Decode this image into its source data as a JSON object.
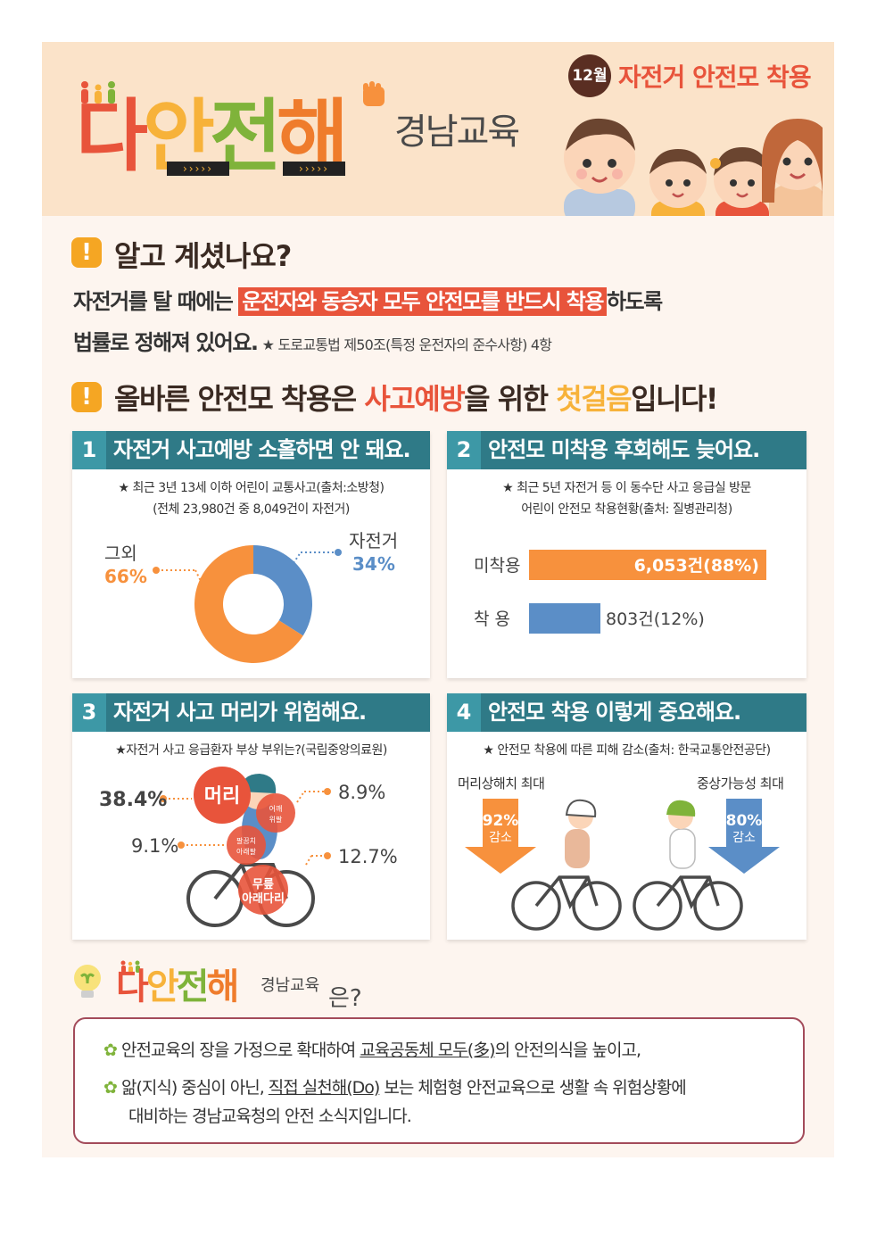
{
  "header": {
    "brand_chars": [
      "다",
      "안",
      "전",
      "해"
    ],
    "brand_sub": "경남교육",
    "month_badge": "12월",
    "topic": "자전거 안전모 착용"
  },
  "section1": {
    "heading": "알고 계셨나요?",
    "line1_before": "자전거를 탈 때에는 ",
    "line1_highlight": "운전자와 동승자 모두 안전모를 반드시 착용",
    "line1_after": "하도록",
    "line2": "법률로 정해져 있어요.",
    "line2_note": "★ 도로교통법 제50조(특정 운전자의 준수사항) 4항"
  },
  "section2": {
    "heading_a": "올바른 안전모 착용은 ",
    "heading_b": "사고예방",
    "heading_c": "을 위한 ",
    "heading_d": "첫걸음",
    "heading_e": "입니다!"
  },
  "cards": {
    "c1": {
      "num": "1",
      "title": "자전거 사고예방 소홀하면 안 돼요.",
      "note1": "★ 최근 3년 13세 이하 어린이 교통사고(출처:소방청)",
      "note2": "(전체 23,980건 중 8,049건이 자전거)"
    },
    "c2": {
      "num": "2",
      "title": "안전모 미착용 후회해도 늦어요.",
      "note1": "★ 최근 5년 자전거 등 이 동수단 사고 응급실 방문",
      "note2": "어린이 안전모 착용현황(출처: 질병관리청)"
    },
    "c3": {
      "num": "3",
      "title": "자전거 사고 머리가 위험해요.",
      "note": "★자전거 사고 응급환자 부상 부위는?(국립중앙의료원)",
      "head_label": "머리",
      "shoulder_label": "어깨\n위팔",
      "arm_label": "팔꿈치\n아래팔",
      "leg_label": "무릎\n아래다리",
      "pct_head": "38.4%",
      "pct_shoulder": "8.9%",
      "pct_arm": "9.1%",
      "pct_leg": "12.7%"
    },
    "c4": {
      "num": "4",
      "title": "안전모 착용 이렇게 중요해요.",
      "note": "★ 안전모 착용에 따른 피해 감소(출처: 한국교통안전공단)",
      "left_label": "머리상해치 최대",
      "right_label": "중상가능성 최대",
      "left_pct": "92%",
      "left_word": "감소",
      "right_pct": "80%",
      "right_word": "감소"
    }
  },
  "about": {
    "sub": "경남교육",
    "suffix": "은?",
    "bullet1_a": "안전교육의 장을 가정으로 확대하여 ",
    "bullet1_b": "교육공동체 모두(多)",
    "bullet1_c": "의 안전의식을 높이고,",
    "bullet2_a": "앎(지식) 중심이 아닌, ",
    "bullet2_b": "직접 실천해(Do)",
    "bullet2_c": " 보는 체험형 안전교육으로 생활 속 위험상황에",
    "bullet2_d": "대비하는 경남교육청의 안전 소식지입니다."
  },
  "colors": {
    "orange": "#f7913d",
    "blue": "#5b8ec7",
    "teal": "#2f7a87",
    "red": "#e8543b"
  },
  "chart_data": [
    {
      "type": "pie",
      "labels": [
        "그외",
        "자전거"
      ],
      "values": [
        66,
        34
      ],
      "value_labels": [
        "66%",
        "34%"
      ]
    },
    {
      "type": "bar",
      "categories": [
        "미착용",
        "착 용"
      ],
      "values": [
        6053,
        803
      ],
      "value_labels": [
        "6,053건(88%)",
        "803건(12%)"
      ]
    }
  ]
}
